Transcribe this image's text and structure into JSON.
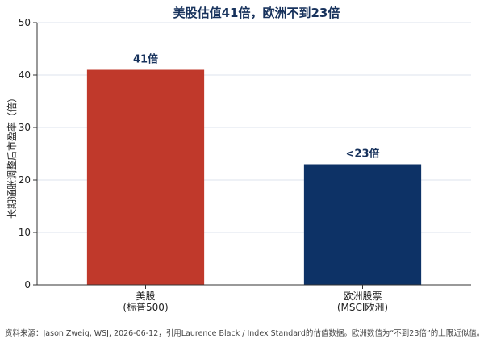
{
  "chart_data": {
    "type": "bar",
    "title": "美股估值41倍，欧洲不到23倍",
    "categories": [
      "美股\n(标普500)",
      "欧洲股票\n(MSCI欧洲)"
    ],
    "values": [
      41,
      23
    ],
    "data_labels": [
      "41倍",
      "<23倍"
    ],
    "colors": [
      "#c0392b",
      "#0d3266"
    ],
    "xlabel": "",
    "ylabel": "长期通胀调整后市盈率（倍）",
    "ylim": [
      0,
      50
    ],
    "yticks": [
      0,
      10,
      20,
      30,
      40,
      50
    ],
    "grid": true,
    "source": "资料来源：Jason Zweig, WSJ, 2026-06-12，引用Laurence Black / Index Standard的估值数据。欧洲数值为“不到23倍”的上限近似值。"
  }
}
